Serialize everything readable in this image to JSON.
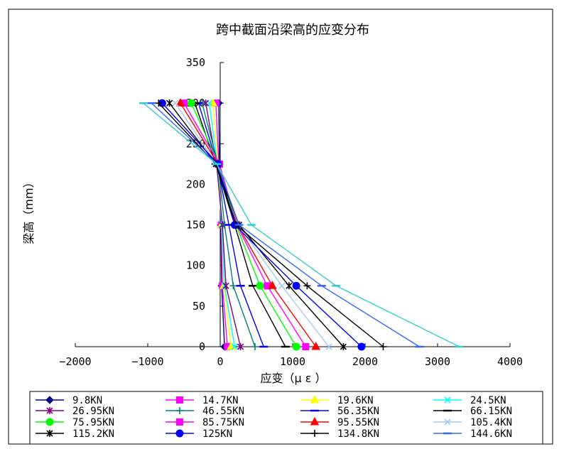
{
  "chart_data": {
    "type": "line",
    "title": "跨中截面沿梁高的应变分布",
    "xlabel": "应变（μ ε ）",
    "ylabel": "梁高（mm）",
    "xlim": [
      -2000,
      4000
    ],
    "ylim": [
      0,
      350
    ],
    "xticks": [
      -2000,
      -1000,
      0,
      1000,
      2000,
      3000,
      4000
    ],
    "yticks": [
      0,
      50,
      100,
      150,
      200,
      250,
      300,
      350
    ],
    "grid": false,
    "legend_position": "bottom",
    "y_levels": [
      0,
      75,
      150,
      225,
      300
    ],
    "series": [
      {
        "name": "9.8KN",
        "color": "#000080",
        "marker": "diamond",
        "x": [
          60,
          20,
          10,
          -10,
          -20
        ]
      },
      {
        "name": "14.7KN",
        "color": "#ff00ff",
        "marker": "square",
        "x": [
          100,
          30,
          15,
          -20,
          -60
        ]
      },
      {
        "name": "19.6KN",
        "color": "#ffff00",
        "marker": "triangle",
        "x": [
          150,
          50,
          20,
          -30,
          -100
        ]
      },
      {
        "name": "24.5KN",
        "color": "#00ffff",
        "marker": "x",
        "x": [
          200,
          60,
          20,
          -40,
          -150
        ]
      },
      {
        "name": "26.95KN",
        "color": "#800080",
        "marker": "asterisk",
        "x": [
          280,
          80,
          30,
          -50,
          -200
        ]
      },
      {
        "name": "46.55KN",
        "color": "#008080",
        "marker": "plus",
        "x": [
          480,
          180,
          60,
          -30,
          -250
        ]
      },
      {
        "name": "56.35KN",
        "color": "#0000ff",
        "marker": "dash",
        "x": [
          600,
          280,
          120,
          -40,
          -300
        ]
      },
      {
        "name": "66.15KN",
        "color": "#000000",
        "marker": "dash",
        "x": [
          900,
          450,
          200,
          -60,
          -350
        ]
      },
      {
        "name": "75.95KN",
        "color": "#00ff00",
        "marker": "circle",
        "x": [
          1050,
          550,
          220,
          -20,
          -400
        ]
      },
      {
        "name": "85.75KN",
        "color": "#ff00ff",
        "marker": "square",
        "x": [
          1180,
          650,
          230,
          -10,
          -500
        ]
      },
      {
        "name": "95.55KN",
        "color": "#ff0000",
        "marker": "triangle",
        "x": [
          1320,
          720,
          240,
          -30,
          -550
        ]
      },
      {
        "name": "105.4KN",
        "color": "#a6caf0",
        "marker": "x",
        "x": [
          1500,
          850,
          250,
          -50,
          -620
        ]
      },
      {
        "name": "115.2KN",
        "color": "#000000",
        "marker": "asterisk",
        "x": [
          1700,
          950,
          260,
          -60,
          -700
        ]
      },
      {
        "name": "125KN",
        "color": "#0000ff",
        "marker": "circle",
        "x": [
          1950,
          1050,
          200,
          -30,
          -800
        ]
      },
      {
        "name": "134.8KN",
        "color": "#000000",
        "marker": "plus",
        "x": [
          2250,
          1200,
          220,
          -60,
          -850
        ]
      },
      {
        "name": "144.6KN",
        "color": "#3366ff",
        "marker": "dash",
        "x": [
          2750,
          1400,
          260,
          -40,
          -950
        ]
      },
      {
        "name": "",
        "color": "#33cccc",
        "marker": "dash",
        "x": [
          3300,
          1600,
          430,
          -50,
          -1060
        ]
      }
    ]
  }
}
